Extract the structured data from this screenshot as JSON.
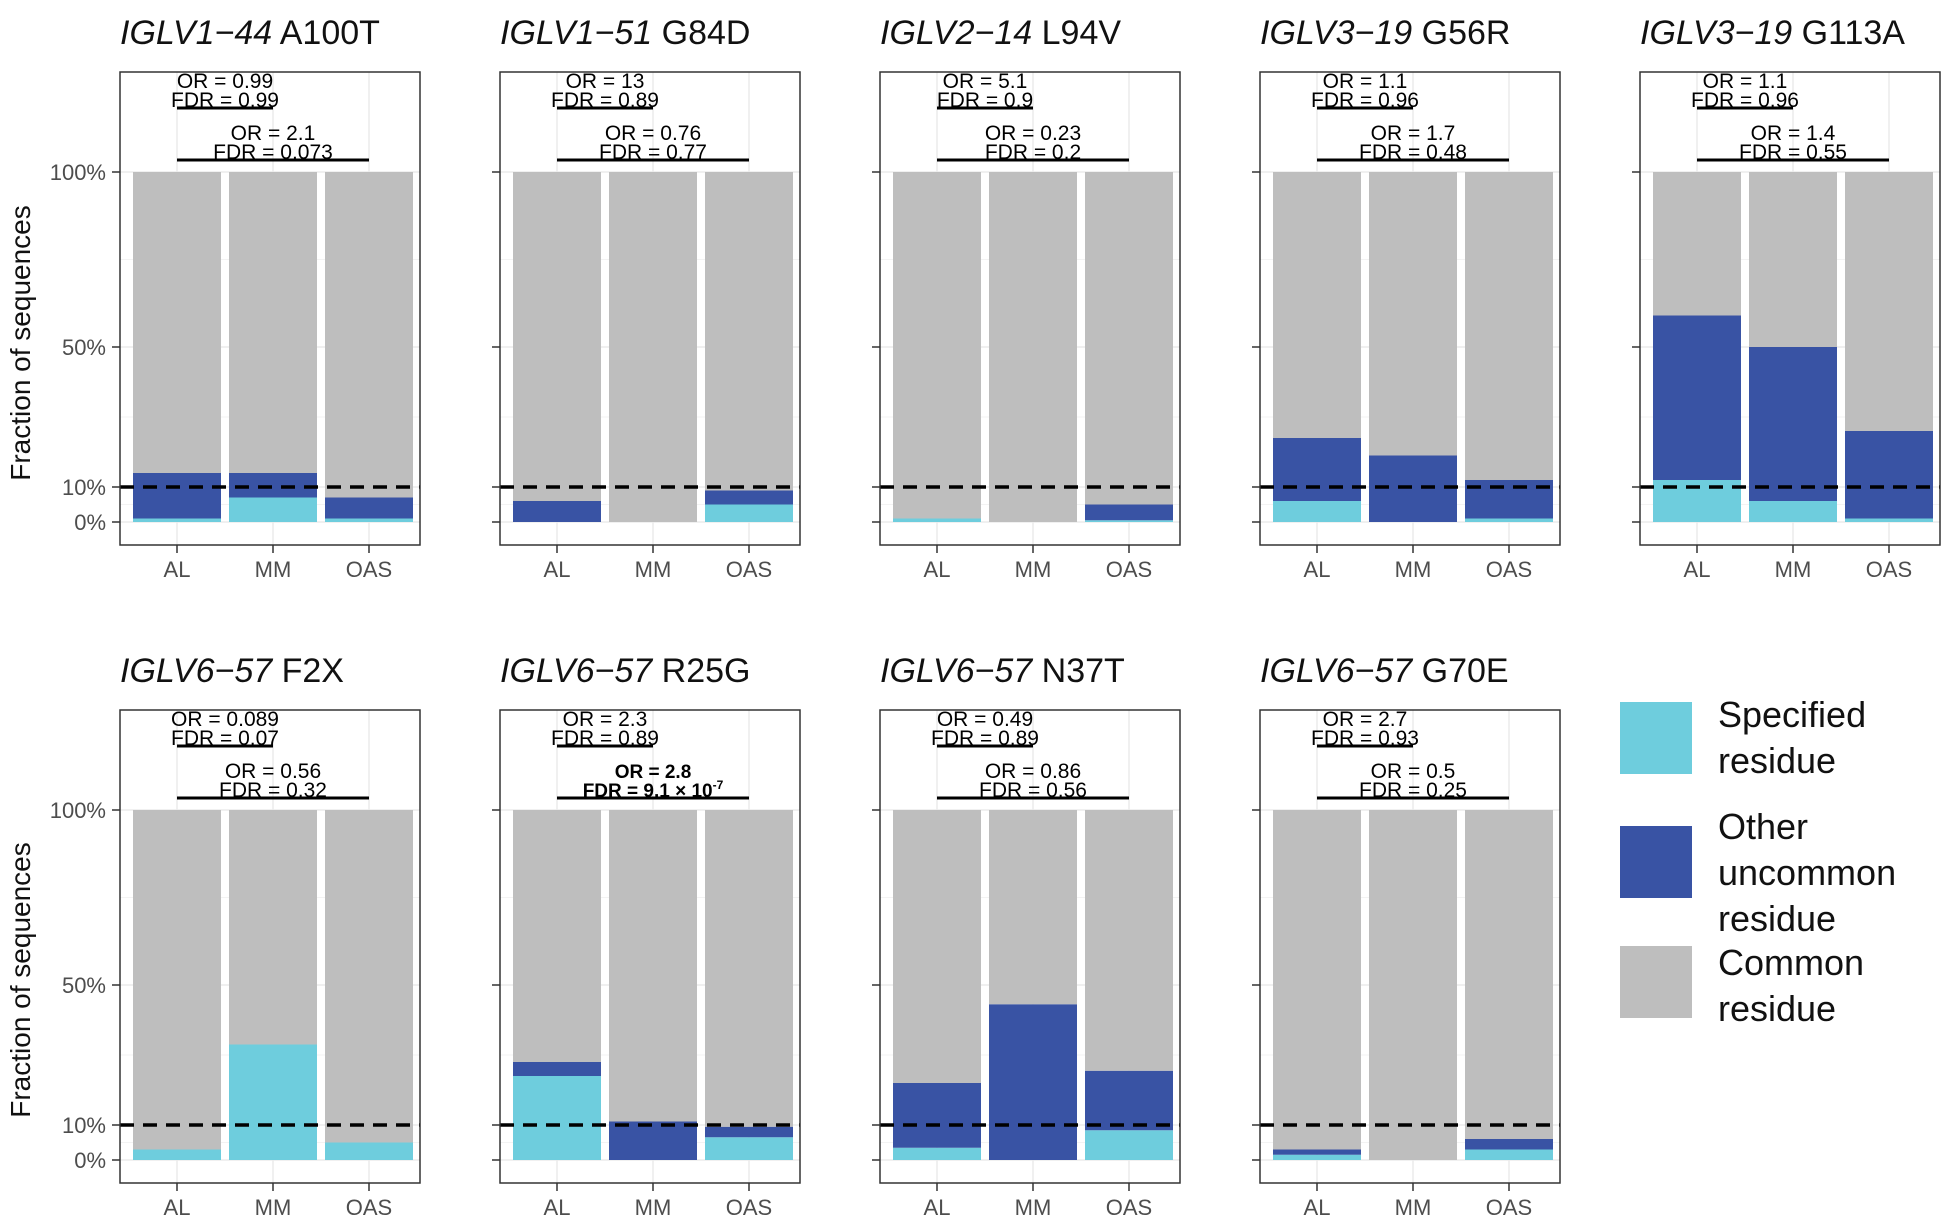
{
  "figure": {
    "y_axis_label": "Fraction of sequences",
    "y_tick_labels": [
      "100%",
      "50%",
      "10%",
      "0%"
    ],
    "threshold_label": "10%"
  },
  "legend": {
    "title": "",
    "items": [
      {
        "label": "Specified residue",
        "color": "#6ecddd",
        "key": "specified"
      },
      {
        "label": "Other uncommon residue",
        "color": "#3953a4",
        "key": "other"
      },
      {
        "label": "Common residue",
        "color": "#bebebe",
        "key": "common"
      }
    ]
  },
  "colors": {
    "specified": "#6ecddd",
    "other": "#3953a4",
    "common": "#bebebe",
    "panel_border": "#333333",
    "grid": "#ebebeb"
  },
  "chart_data": [
    {
      "type": "bar",
      "stacked": true,
      "gene": "IGLV1−44",
      "mutation": "A100T",
      "categories": [
        "AL",
        "MM",
        "OAS"
      ],
      "series": [
        {
          "name": "Specified residue",
          "values": [
            0.01,
            0.07,
            0.01
          ]
        },
        {
          "name": "Other uncommon residue",
          "values": [
            0.13,
            0.07,
            0.06
          ]
        },
        {
          "name": "Common residue",
          "values": [
            0.86,
            0.86,
            0.93
          ]
        }
      ],
      "ylim": [
        0,
        1
      ],
      "dashed_line": 0.1,
      "comparisons": [
        {
          "pair": [
            "AL",
            "MM"
          ],
          "or": "OR = 0.99",
          "fdr": "FDR = 0.99",
          "bold": false
        },
        {
          "pair": [
            "AL",
            "OAS"
          ],
          "or": "OR = 2.1",
          "fdr": "FDR = 0.073",
          "bold": false
        }
      ]
    },
    {
      "type": "bar",
      "stacked": true,
      "gene": "IGLV1−51",
      "mutation": "G84D",
      "categories": [
        "AL",
        "MM",
        "OAS"
      ],
      "series": [
        {
          "name": "Specified residue",
          "values": [
            0.0,
            0.0,
            0.05
          ]
        },
        {
          "name": "Other uncommon residue",
          "values": [
            0.06,
            0.0,
            0.04
          ]
        },
        {
          "name": "Common residue",
          "values": [
            0.94,
            1.0,
            0.91
          ]
        }
      ],
      "ylim": [
        0,
        1
      ],
      "dashed_line": 0.1,
      "comparisons": [
        {
          "pair": [
            "AL",
            "MM"
          ],
          "or": "OR = 13",
          "fdr": "FDR = 0.89",
          "bold": false
        },
        {
          "pair": [
            "AL",
            "OAS"
          ],
          "or": "OR = 0.76",
          "fdr": "FDR = 0.77",
          "bold": false
        }
      ]
    },
    {
      "type": "bar",
      "stacked": true,
      "gene": "IGLV2−14",
      "mutation": "L94V",
      "categories": [
        "AL",
        "MM",
        "OAS"
      ],
      "series": [
        {
          "name": "Specified residue",
          "values": [
            0.01,
            0.0,
            0.005
          ]
        },
        {
          "name": "Other uncommon residue",
          "values": [
            0.0,
            0.0,
            0.045
          ]
        },
        {
          "name": "Common residue",
          "values": [
            0.99,
            1.0,
            0.95
          ]
        }
      ],
      "ylim": [
        0,
        1
      ],
      "dashed_line": 0.1,
      "comparisons": [
        {
          "pair": [
            "AL",
            "MM"
          ],
          "or": "OR = 5.1",
          "fdr": "FDR = 0.9",
          "bold": false
        },
        {
          "pair": [
            "AL",
            "OAS"
          ],
          "or": "OR = 0.23",
          "fdr": "FDR = 0.2",
          "bold": false
        }
      ]
    },
    {
      "type": "bar",
      "stacked": true,
      "gene": "IGLV3−19",
      "mutation": "G56R",
      "categories": [
        "AL",
        "MM",
        "OAS"
      ],
      "series": [
        {
          "name": "Specified residue",
          "values": [
            0.06,
            0.0,
            0.01
          ]
        },
        {
          "name": "Other uncommon residue",
          "values": [
            0.18,
            0.19,
            0.11
          ]
        },
        {
          "name": "Common residue",
          "values": [
            0.76,
            0.81,
            0.88
          ]
        }
      ],
      "ylim": [
        0,
        1
      ],
      "dashed_line": 0.1,
      "comparisons": [
        {
          "pair": [
            "AL",
            "MM"
          ],
          "or": "OR = 1.1",
          "fdr": "FDR = 0.96",
          "bold": false
        },
        {
          "pair": [
            "AL",
            "OAS"
          ],
          "or": "OR = 1.7",
          "fdr": "FDR = 0.48",
          "bold": false
        }
      ]
    },
    {
      "type": "bar",
      "stacked": true,
      "gene": "IGLV3−19",
      "mutation": "G113A",
      "categories": [
        "AL",
        "MM",
        "OAS"
      ],
      "series": [
        {
          "name": "Specified residue",
          "values": [
            0.12,
            0.06,
            0.01
          ]
        },
        {
          "name": "Other uncommon residue",
          "values": [
            0.47,
            0.44,
            0.25
          ]
        },
        {
          "name": "Common residue",
          "values": [
            0.41,
            0.5,
            0.74
          ]
        }
      ],
      "ylim": [
        0,
        1
      ],
      "dashed_line": 0.1,
      "comparisons": [
        {
          "pair": [
            "AL",
            "MM"
          ],
          "or": "OR = 1.1",
          "fdr": "FDR = 0.96",
          "bold": false
        },
        {
          "pair": [
            "AL",
            "OAS"
          ],
          "or": "OR = 1.4",
          "fdr": "FDR = 0.55",
          "bold": false
        }
      ]
    },
    {
      "type": "bar",
      "stacked": true,
      "gene": "IGLV6−57",
      "mutation": "F2X",
      "categories": [
        "AL",
        "MM",
        "OAS"
      ],
      "series": [
        {
          "name": "Specified residue",
          "values": [
            0.03,
            0.33,
            0.05
          ]
        },
        {
          "name": "Other uncommon residue",
          "values": [
            0.0,
            0.0,
            0.0
          ]
        },
        {
          "name": "Common residue",
          "values": [
            0.97,
            0.67,
            0.95
          ]
        }
      ],
      "ylim": [
        0,
        1
      ],
      "dashed_line": 0.1,
      "comparisons": [
        {
          "pair": [
            "AL",
            "MM"
          ],
          "or": "OR = 0.089",
          "fdr": "FDR = 0.07",
          "bold": false
        },
        {
          "pair": [
            "AL",
            "OAS"
          ],
          "or": "OR = 0.56",
          "fdr": "FDR = 0.32",
          "bold": false
        }
      ]
    },
    {
      "type": "bar",
      "stacked": true,
      "gene": "IGLV6−57",
      "mutation": "R25G",
      "categories": [
        "AL",
        "MM",
        "OAS"
      ],
      "series": [
        {
          "name": "Specified residue",
          "values": [
            0.24,
            0.0,
            0.065
          ]
        },
        {
          "name": "Other uncommon residue",
          "values": [
            0.04,
            0.11,
            0.03
          ]
        },
        {
          "name": "Common residue",
          "values": [
            0.72,
            0.89,
            0.905
          ]
        }
      ],
      "ylim": [
        0,
        1
      ],
      "dashed_line": 0.1,
      "comparisons": [
        {
          "pair": [
            "AL",
            "MM"
          ],
          "or": "OR = 2.3",
          "fdr": "FDR = 0.89",
          "bold": false
        },
        {
          "pair": [
            "AL",
            "OAS"
          ],
          "or": "OR = 2.8",
          "fdr": "FDR = 9.1 × 10",
          "fdr_exponent": "-7",
          "bold": true
        }
      ]
    },
    {
      "type": "bar",
      "stacked": true,
      "gene": "IGLV6−57",
      "mutation": "N37T",
      "categories": [
        "AL",
        "MM",
        "OAS"
      ],
      "series": [
        {
          "name": "Specified residue",
          "values": [
            0.035,
            0.0,
            0.085
          ]
        },
        {
          "name": "Other uncommon residue",
          "values": [
            0.185,
            0.445,
            0.17
          ]
        },
        {
          "name": "Common residue",
          "values": [
            0.78,
            0.555,
            0.745
          ]
        }
      ],
      "ylim": [
        0,
        1
      ],
      "dashed_line": 0.1,
      "comparisons": [
        {
          "pair": [
            "AL",
            "MM"
          ],
          "or": "OR = 0.49",
          "fdr": "FDR = 0.89",
          "bold": false
        },
        {
          "pair": [
            "AL",
            "OAS"
          ],
          "or": "OR = 0.86",
          "fdr": "FDR = 0.56",
          "bold": false
        }
      ]
    },
    {
      "type": "bar",
      "stacked": true,
      "gene": "IGLV6−57",
      "mutation": "G70E",
      "categories": [
        "AL",
        "MM",
        "OAS"
      ],
      "series": [
        {
          "name": "Specified residue",
          "values": [
            0.015,
            0.0,
            0.03
          ]
        },
        {
          "name": "Other uncommon residue",
          "values": [
            0.015,
            0.0,
            0.03
          ]
        },
        {
          "name": "Common residue",
          "values": [
            0.97,
            1.0,
            0.94
          ]
        }
      ],
      "ylim": [
        0,
        1
      ],
      "dashed_line": 0.1,
      "comparisons": [
        {
          "pair": [
            "AL",
            "MM"
          ],
          "or": "OR = 2.7",
          "fdr": "FDR = 0.93",
          "bold": false
        },
        {
          "pair": [
            "AL",
            "OAS"
          ],
          "or": "OR = 0.5",
          "fdr": "FDR = 0.25",
          "bold": false
        }
      ]
    }
  ]
}
